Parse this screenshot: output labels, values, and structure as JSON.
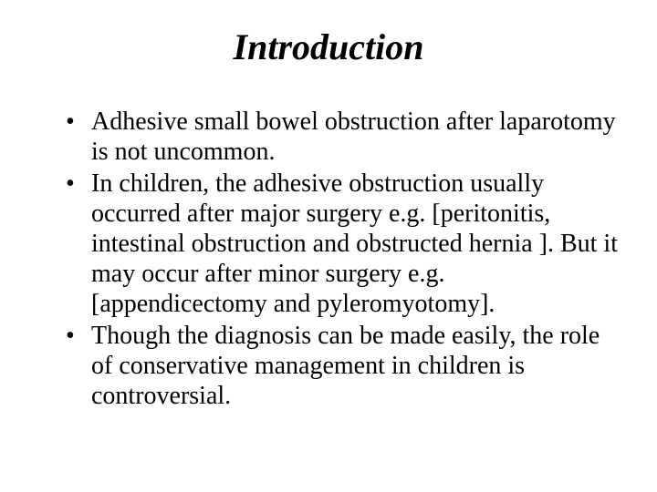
{
  "slide": {
    "title": "Introduction",
    "title_fontsize": 40,
    "body_fontsize": 28,
    "line_height": 1.18,
    "background_color": "#ffffff",
    "text_color": "#000000",
    "bullets": [
      "Adhesive small bowel obstruction after laparotomy is not uncommon.",
      "In children, the adhesive obstruction usually occurred after major surgery e.g. [peritonitis, intestinal obstruction and obstructed hernia ]. But it may occur after minor surgery e.g. [appendicectomy and pyleromyotomy].",
      "Though the diagnosis can be made easily, the role of conservative management in children is controversial."
    ]
  }
}
